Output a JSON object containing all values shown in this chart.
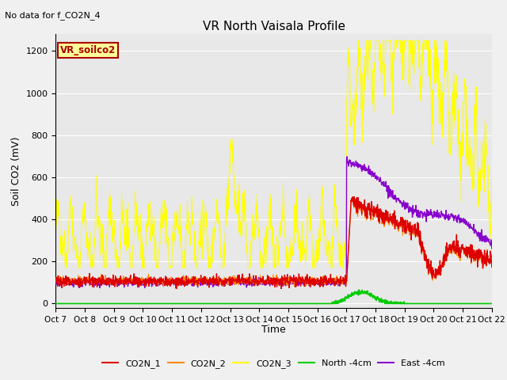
{
  "title": "VR North Vaisala Profile",
  "subtitle": "No data for f_CO2N_4",
  "ylabel": "Soil CO2 (mV)",
  "xlabel": "Time",
  "ylim": [
    -20,
    1280
  ],
  "yticks": [
    0,
    200,
    400,
    600,
    800,
    1000,
    1200
  ],
  "xtick_labels": [
    "Oct 7",
    "Oct 8",
    "Oct 9",
    "Oct 10",
    "Oct 11",
    "Oct 12",
    "Oct 13",
    "Oct 14",
    "Oct 15",
    "Oct 16",
    "Oct 17",
    "Oct 18",
    "Oct 19",
    "Oct 20",
    "Oct 21",
    "Oct 22"
  ],
  "legend_labels": [
    "CO2N_1",
    "CO2N_2",
    "CO2N_3",
    "North -4cm",
    "East -4cm"
  ],
  "legend_colors": [
    "#dd0000",
    "#ff8800",
    "#ffff00",
    "#00cc00",
    "#8800cc"
  ],
  "box_label": "VR_soilco2",
  "bg_color": "#e8e8e8",
  "grid_color": "#ffffff",
  "fig_bg": "#f0f0f0"
}
